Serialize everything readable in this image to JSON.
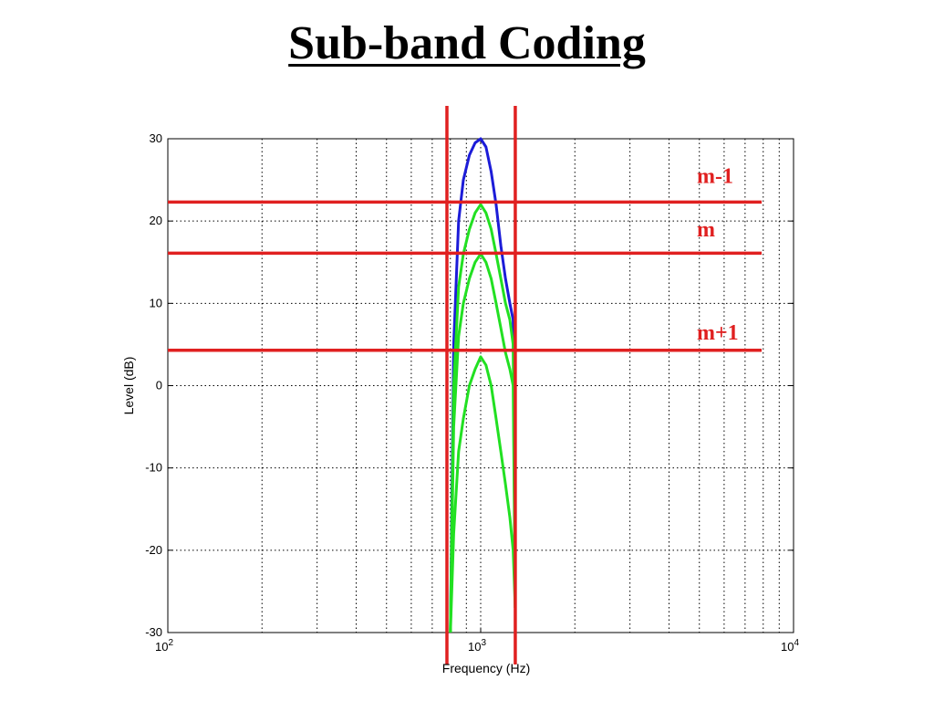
{
  "slide": {
    "title": "Sub-band Coding"
  },
  "colors": {
    "blue_series": "#1c1cd8",
    "green_series": "#22e022",
    "overlay_red": "#e02020",
    "grid": "#000000"
  },
  "chart_data": {
    "type": "line",
    "title": "",
    "xlabel": "Frequency (Hz)",
    "ylabel": "Level (dB)",
    "xscale": "log",
    "xlim": [
      100,
      10000
    ],
    "ylim": [
      -30,
      30
    ],
    "xticks": [
      100,
      1000,
      10000
    ],
    "xtick_labels": [
      [
        "10",
        "2"
      ],
      [
        "10",
        "3"
      ],
      [
        "10",
        "4"
      ]
    ],
    "yticks": [
      30,
      20,
      10,
      0,
      -10,
      -20,
      -30
    ],
    "ytick_labels": [
      "30",
      "20",
      "10",
      "0",
      "-10",
      "-20",
      "-30"
    ],
    "grid": true,
    "series": [
      {
        "color": "blue",
        "x": [
          800,
          820,
          850,
          880,
          920,
          960,
          1000,
          1040,
          1080,
          1120,
          1160,
          1200,
          1240,
          1270,
          1290
        ],
        "y": [
          -30,
          5,
          20,
          25,
          28,
          29.5,
          30,
          29,
          26,
          22,
          17,
          13,
          10,
          8,
          -25
        ]
      },
      {
        "color": "green",
        "x": [
          800,
          820,
          850,
          880,
          920,
          960,
          1000,
          1040,
          1080,
          1120,
          1160,
          1200,
          1240,
          1270,
          1290
        ],
        "y": [
          -30,
          0,
          12,
          16,
          19,
          21,
          22,
          21,
          19,
          16,
          13,
          10,
          8,
          5,
          -27
        ]
      },
      {
        "color": "green",
        "x": [
          800,
          820,
          850,
          880,
          920,
          960,
          1000,
          1040,
          1080,
          1120,
          1160,
          1200,
          1240,
          1270,
          1290
        ],
        "y": [
          -30,
          -5,
          6,
          10,
          13,
          15,
          16,
          15,
          13,
          10,
          7,
          4,
          2,
          0,
          -27
        ]
      },
      {
        "color": "green",
        "x": [
          800,
          820,
          850,
          880,
          920,
          960,
          1000,
          1040,
          1080,
          1120,
          1160,
          1200,
          1240,
          1270,
          1290
        ],
        "y": [
          -30,
          -18,
          -8,
          -4,
          0,
          2,
          3.5,
          2.5,
          0,
          -4,
          -8,
          -12,
          -16,
          -20,
          -27
        ]
      }
    ],
    "overlay": {
      "vertical_lines_hz": [
        780,
        1290
      ],
      "horizontal_lines_db": [
        22.3,
        16.1,
        4.3
      ],
      "band_labels": [
        {
          "text": "m-1",
          "y": 25.5
        },
        {
          "text": "m",
          "y": 19
        },
        {
          "text": "m+1",
          "y": 6.5
        }
      ]
    }
  }
}
